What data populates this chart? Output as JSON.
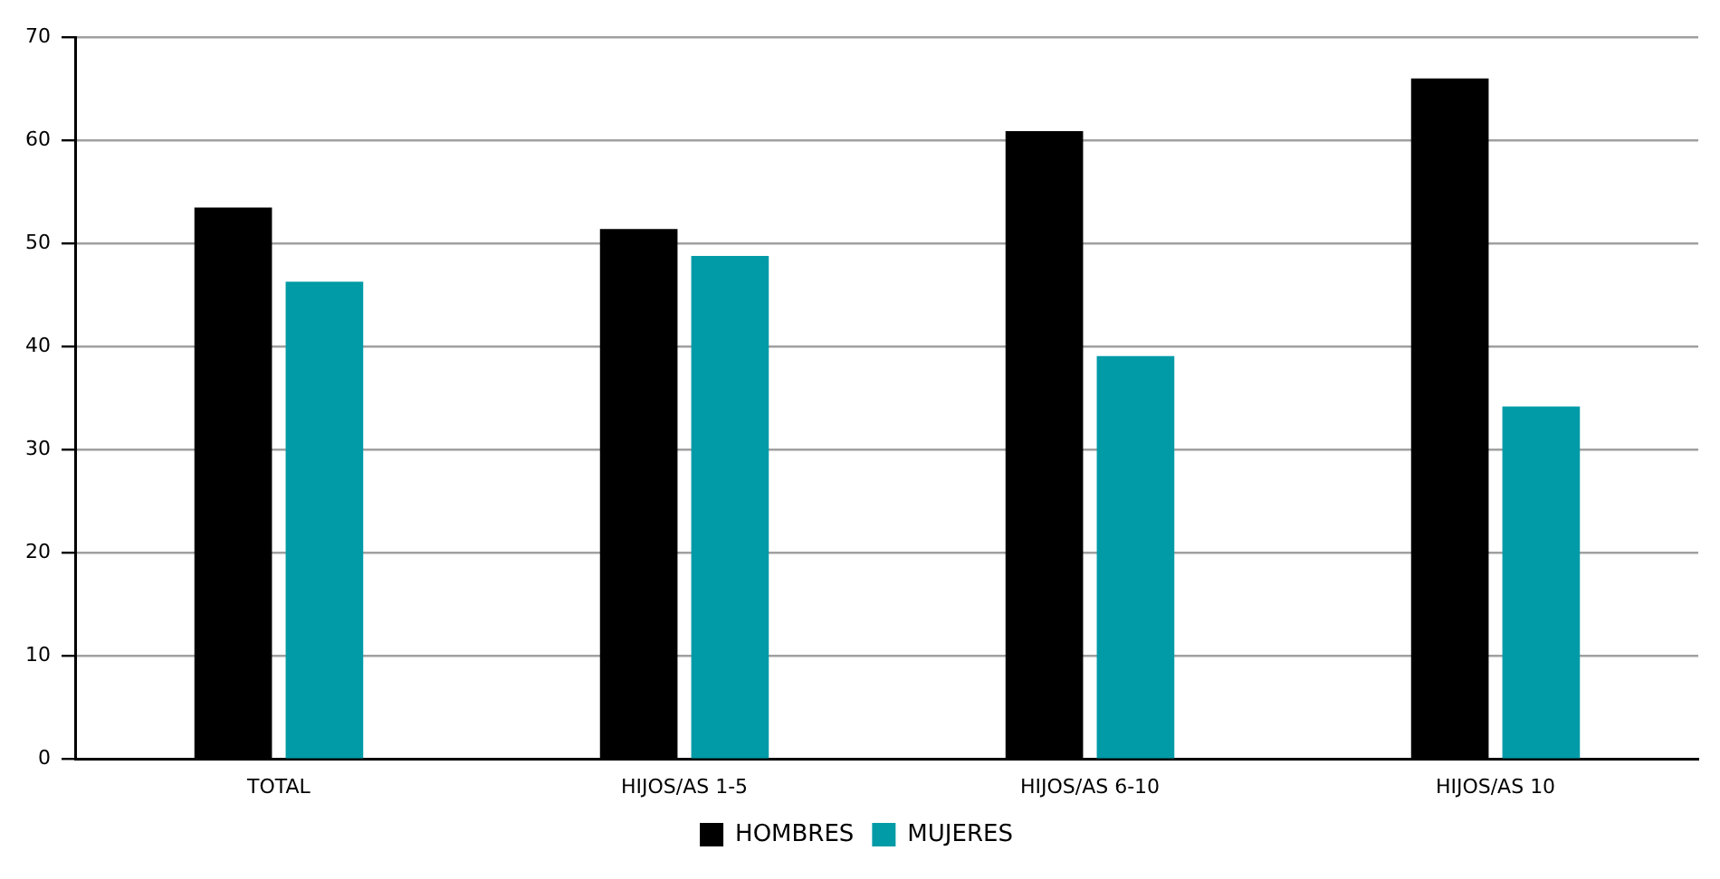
{
  "chart_data": {
    "type": "bar",
    "categories": [
      "TOTAL",
      "HIJOS/AS 1-5",
      "HIJOS/AS 6-10",
      "HIJOS/AS 10"
    ],
    "series": [
      {
        "name": "HOMBRES",
        "color": "#000000",
        "values": [
          53.5,
          51.4,
          60.9,
          66.0
        ]
      },
      {
        "name": "MUJERES",
        "color": "#009ba7",
        "values": [
          46.3,
          48.8,
          39.1,
          34.2
        ]
      }
    ],
    "ylim": [
      0,
      70
    ],
    "yticks": [
      0,
      10,
      20,
      30,
      40,
      50,
      60,
      70
    ],
    "grid": "y",
    "legend": "bottom"
  }
}
